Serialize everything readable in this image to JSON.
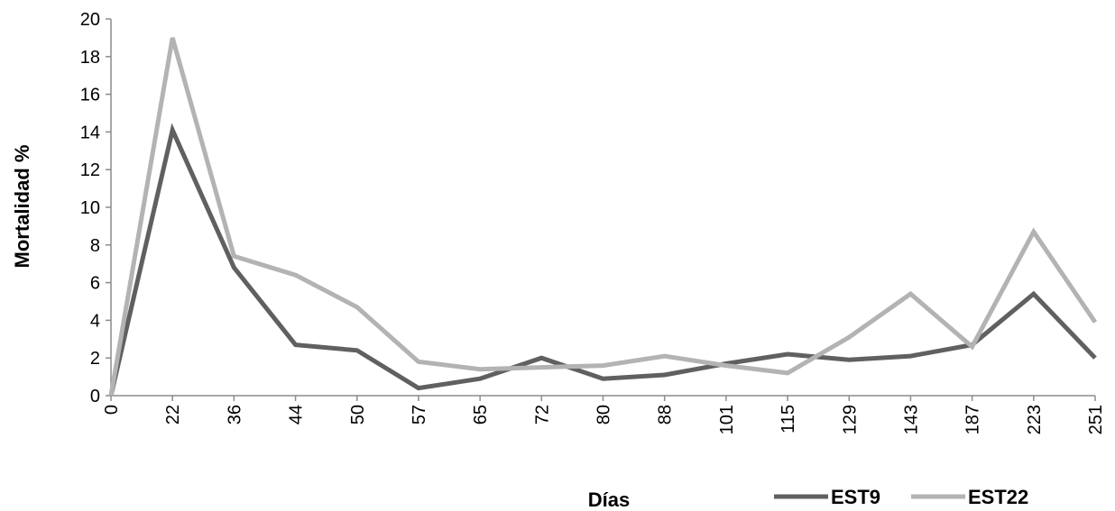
{
  "chart_data": {
    "type": "line",
    "xlabel": "Días",
    "ylabel": "Mortalidad %",
    "categories": [
      "0",
      "22",
      "36",
      "44",
      "50",
      "57",
      "65",
      "72",
      "80",
      "88",
      "101",
      "115",
      "129",
      "143",
      "187",
      "223",
      "251"
    ],
    "ylim": [
      0,
      20
    ],
    "yticks": [
      "0",
      "2",
      "4",
      "6",
      "8",
      "10",
      "12",
      "14",
      "16",
      "18",
      "20"
    ],
    "grid": false,
    "legend_position": "bottom-right",
    "series": [
      {
        "name": "EST9",
        "color": "#606060",
        "values": [
          0,
          14.1,
          6.8,
          2.7,
          2.4,
          0.4,
          0.9,
          2.0,
          0.9,
          1.1,
          1.7,
          2.2,
          1.9,
          2.1,
          2.7,
          5.4,
          2.0
        ]
      },
      {
        "name": "EST22",
        "color": "#b3b3b3",
        "values": [
          0,
          19.0,
          7.4,
          6.4,
          4.7,
          1.8,
          1.4,
          1.5,
          1.6,
          2.1,
          1.6,
          1.2,
          3.1,
          5.4,
          2.6,
          8.7,
          3.9
        ]
      }
    ]
  }
}
